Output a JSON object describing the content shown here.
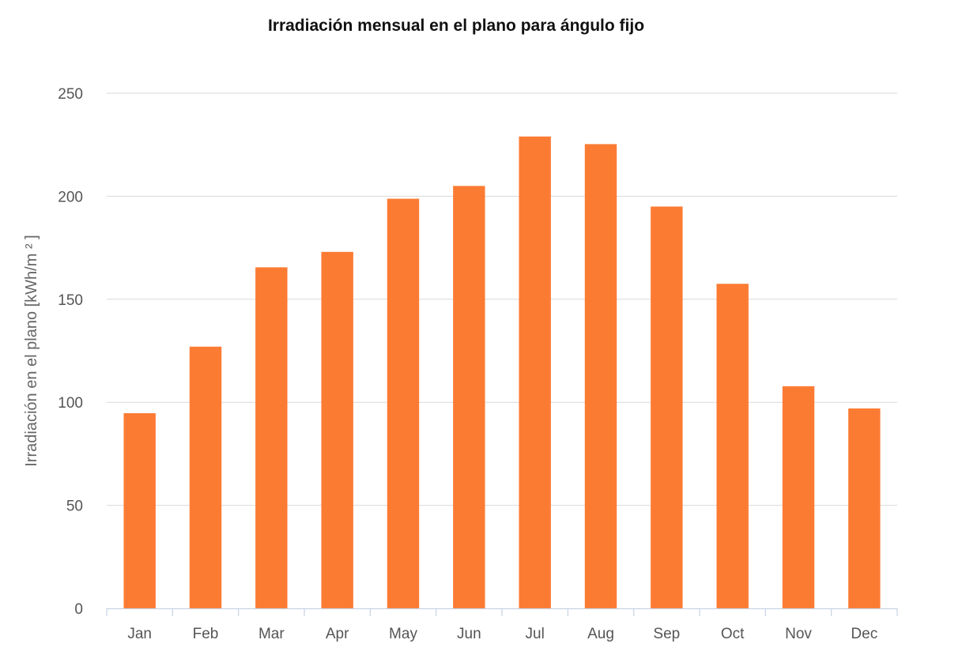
{
  "chart_data": {
    "type": "bar",
    "title": "Irradiación mensual en el plano para ángulo fijo",
    "ylabel": "Irradiación en el plano [kWh/m ² ]",
    "xlabel": "",
    "categories": [
      "Jan",
      "Feb",
      "Mar",
      "Apr",
      "May",
      "Jun",
      "Jul",
      "Aug",
      "Sep",
      "Oct",
      "Nov",
      "Dec"
    ],
    "series": [
      {
        "values": [
          94.7,
          127.0,
          165.5,
          173.0,
          198.8,
          205.0,
          229.0,
          225.3,
          195.0,
          157.5,
          107.8,
          97.0
        ]
      }
    ],
    "ylim": [
      0,
      250
    ],
    "yticks": [
      "0",
      "50",
      "100",
      "150",
      "200",
      "250"
    ],
    "grid": true,
    "legend": "none",
    "colors": {
      "bar": "#fc7b33",
      "grid": "#d9d9d9",
      "axis": "#c7d3e3"
    }
  }
}
